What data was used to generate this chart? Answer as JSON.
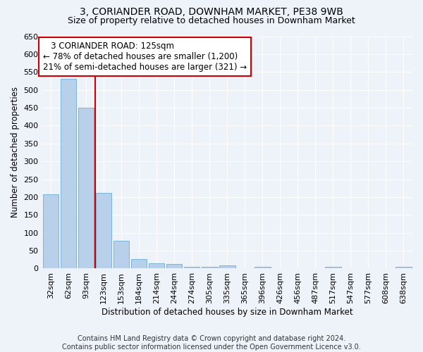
{
  "title": "3, CORIANDER ROAD, DOWNHAM MARKET, PE38 9WB",
  "subtitle": "Size of property relative to detached houses in Downham Market",
  "xlabel": "Distribution of detached houses by size in Downham Market",
  "ylabel": "Number of detached properties",
  "categories": [
    "32sqm",
    "62sqm",
    "93sqm",
    "123sqm",
    "153sqm",
    "184sqm",
    "214sqm",
    "244sqm",
    "274sqm",
    "305sqm",
    "335sqm",
    "365sqm",
    "396sqm",
    "426sqm",
    "456sqm",
    "487sqm",
    "517sqm",
    "547sqm",
    "577sqm",
    "608sqm",
    "638sqm"
  ],
  "values": [
    207,
    530,
    450,
    212,
    78,
    26,
    14,
    12,
    5,
    5,
    8,
    0,
    5,
    0,
    0,
    0,
    5,
    0,
    0,
    0,
    5
  ],
  "bar_color": "#b8d0ea",
  "bar_edge_color": "#6baed6",
  "reference_line_x": 2.5,
  "reference_line_color": "#cc0000",
  "annotation_line1": "   3 CORIANDER ROAD: 125sqm",
  "annotation_line2": "← 78% of detached houses are smaller (1,200)",
  "annotation_line3": "21% of semi-detached houses are larger (321) →",
  "annotation_box_color": "#ffffff",
  "annotation_box_edge_color": "#cc0000",
  "ylim": [
    0,
    650
  ],
  "yticks": [
    0,
    50,
    100,
    150,
    200,
    250,
    300,
    350,
    400,
    450,
    500,
    550,
    600,
    650
  ],
  "footer": "Contains HM Land Registry data © Crown copyright and database right 2024.\nContains public sector information licensed under the Open Government Licence v3.0.",
  "background_color": "#eef2f9",
  "grid_color": "#ffffff",
  "title_fontsize": 10,
  "subtitle_fontsize": 9,
  "axis_label_fontsize": 8.5,
  "tick_fontsize": 8,
  "annotation_fontsize": 8.5,
  "footer_fontsize": 7
}
